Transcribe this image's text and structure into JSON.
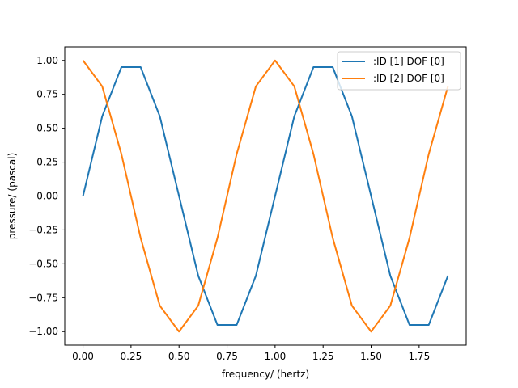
{
  "chart_data": {
    "type": "line",
    "title": "",
    "xlabel": "frequency/ (hertz)",
    "ylabel": "pressure/ (pascal)",
    "xlim": [
      -0.095,
      1.995
    ],
    "ylim": [
      -1.1,
      1.1
    ],
    "grid": false,
    "legend_position": "top-right",
    "x_ticks": [
      {
        "value": 0.0,
        "label": "0.00"
      },
      {
        "value": 0.25,
        "label": "0.25"
      },
      {
        "value": 0.5,
        "label": "0.50"
      },
      {
        "value": 0.75,
        "label": "0.75"
      },
      {
        "value": 1.0,
        "label": "1.00"
      },
      {
        "value": 1.25,
        "label": "1.25"
      },
      {
        "value": 1.5,
        "label": "1.50"
      },
      {
        "value": 1.75,
        "label": "1.75"
      }
    ],
    "y_ticks": [
      {
        "value": 1.0,
        "label": "1.00"
      },
      {
        "value": 0.75,
        "label": "0.75"
      },
      {
        "value": 0.5,
        "label": "0.50"
      },
      {
        "value": 0.25,
        "label": "0.25"
      },
      {
        "value": 0.0,
        "label": "0.00"
      },
      {
        "value": -0.25,
        "label": "−0.25"
      },
      {
        "value": -0.5,
        "label": "−0.50"
      },
      {
        "value": -0.75,
        "label": "−0.75"
      },
      {
        "value": -1.0,
        "label": "−1.00"
      }
    ],
    "x": [
      0.0,
      0.1,
      0.2,
      0.3,
      0.4,
      0.5,
      0.6,
      0.7,
      0.8,
      0.9,
      1.0,
      1.1,
      1.2,
      1.3,
      1.4,
      1.5,
      1.6,
      1.7,
      1.8,
      1.9
    ],
    "series": [
      {
        "name": ":ID [1] DOF [0]",
        "color": "#1f77b4",
        "values": [
          0.0,
          0.588,
          0.951,
          0.951,
          0.588,
          0.0,
          -0.588,
          -0.951,
          -0.951,
          -0.588,
          0.0,
          0.588,
          0.951,
          0.951,
          0.588,
          0.0,
          -0.588,
          -0.951,
          -0.951,
          -0.588
        ]
      },
      {
        "name": ":ID [2] DOF [0]",
        "color": "#ff7f0e",
        "values": [
          1.0,
          0.809,
          0.309,
          -0.309,
          -0.809,
          -1.0,
          -0.809,
          -0.309,
          0.309,
          0.809,
          1.0,
          0.809,
          0.309,
          -0.309,
          -0.809,
          -1.0,
          -0.809,
          -0.309,
          0.309,
          0.809
        ]
      }
    ],
    "reference_line": {
      "y": 0.0,
      "x_start": 0.0,
      "x_end": 1.9,
      "color": "#000000"
    }
  }
}
